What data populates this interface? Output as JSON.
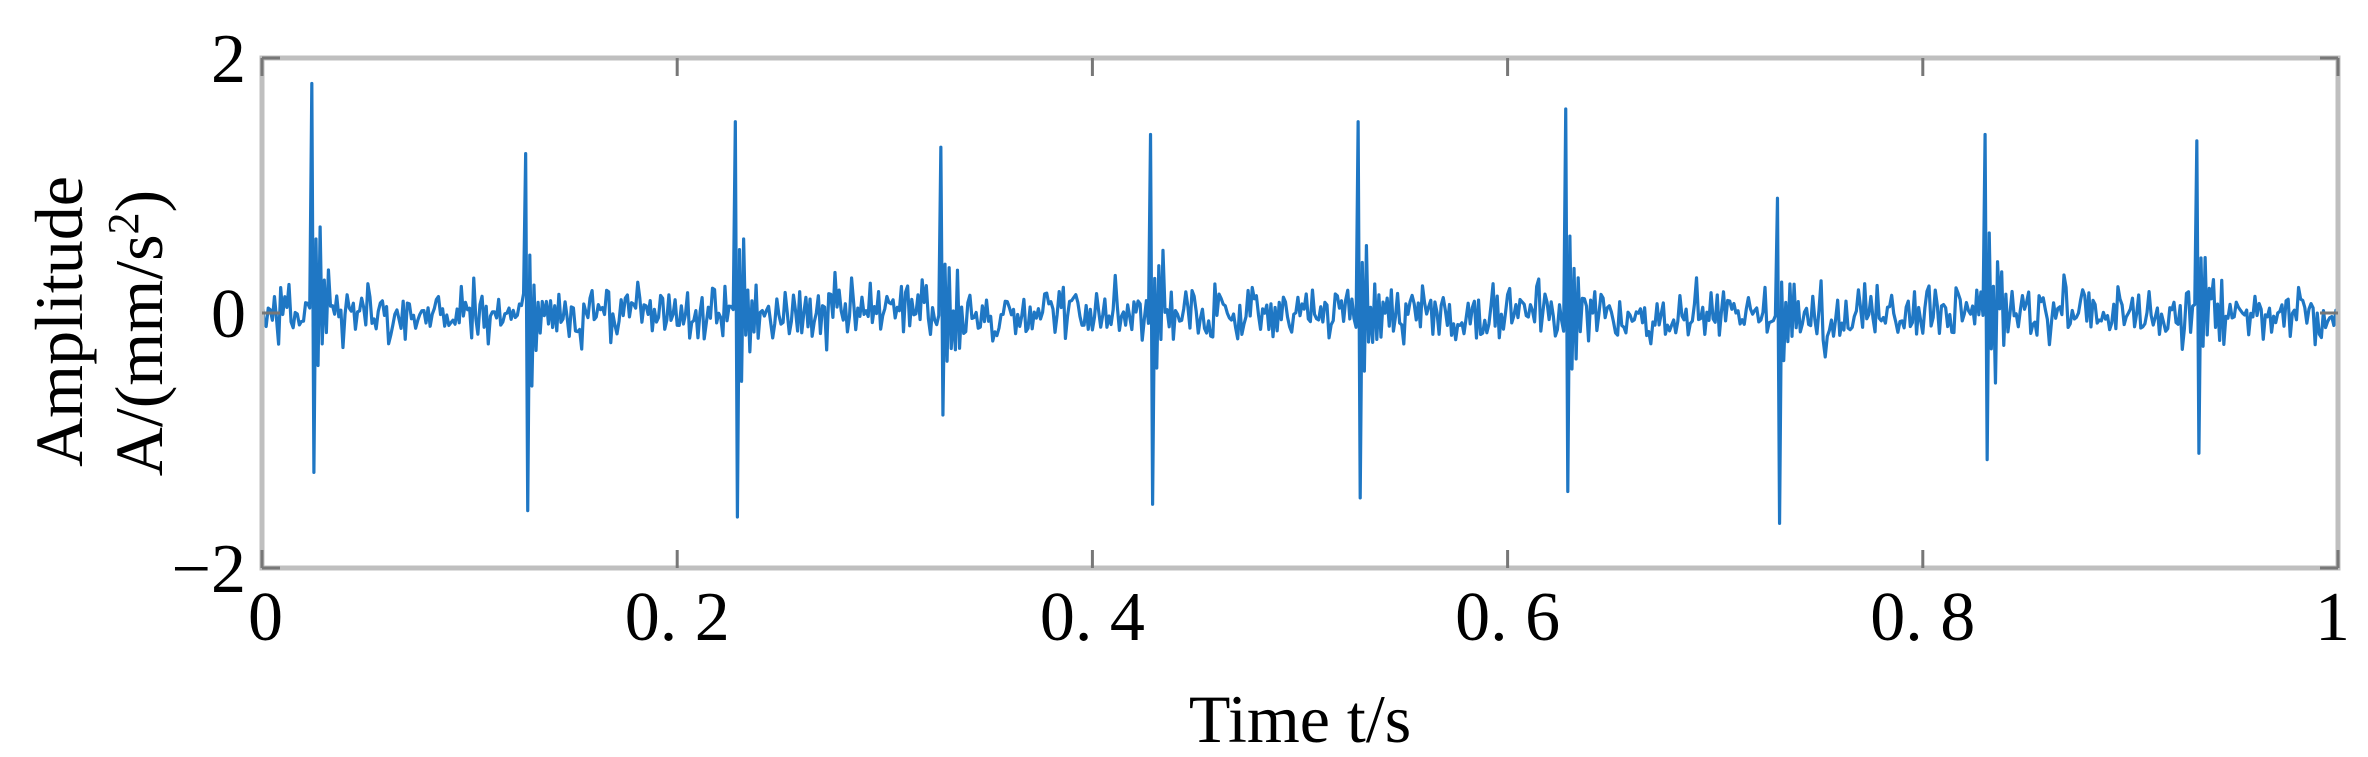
{
  "chart_data": {
    "type": "line",
    "xlabel": "Time t/s",
    "ylabel_lines": [
      "Amplitude",
      "A/(mm/s",
      "2",
      ")"
    ],
    "xlim": [
      0,
      1
    ],
    "ylim": [
      -2,
      2
    ],
    "x_ticks": [
      {
        "value": 0,
        "label": "0"
      },
      {
        "value": 0.2,
        "label": "0. 2"
      },
      {
        "value": 0.4,
        "label": "0. 4"
      },
      {
        "value": 0.6,
        "label": "0. 6"
      },
      {
        "value": 0.8,
        "label": "0. 8"
      },
      {
        "value": 1,
        "label": "1"
      }
    ],
    "y_ticks": [
      {
        "value": -2,
        "label": "−2"
      },
      {
        "value": 0,
        "label": "0"
      },
      {
        "value": 2,
        "label": "2"
      }
    ],
    "grid": false,
    "colors": {
      "series": "#1f77c4",
      "frame": "#bfbfbf"
    },
    "series": [
      {
        "sample_period": 0.001,
        "impulses": [
          {
            "t": 0.024,
            "peak": 1.8,
            "trough": -1.25
          },
          {
            "t": 0.127,
            "peak": 1.25,
            "trough": -1.55
          },
          {
            "t": 0.228,
            "peak": 1.5,
            "trough": -1.6
          },
          {
            "t": 0.327,
            "peak": 1.3,
            "trough": -0.8
          },
          {
            "t": 0.428,
            "peak": 1.4,
            "trough": -1.5
          },
          {
            "t": 0.528,
            "peak": 1.5,
            "trough": -1.45
          },
          {
            "t": 0.628,
            "peak": 1.6,
            "trough": -1.4
          },
          {
            "t": 0.73,
            "peak": 0.9,
            "trough": -1.65
          },
          {
            "t": 0.83,
            "peak": 1.4,
            "trough": -1.15
          },
          {
            "t": 0.932,
            "peak": 1.35,
            "trough": -1.1
          }
        ],
        "noise_amplitude": 0.4
      }
    ]
  }
}
